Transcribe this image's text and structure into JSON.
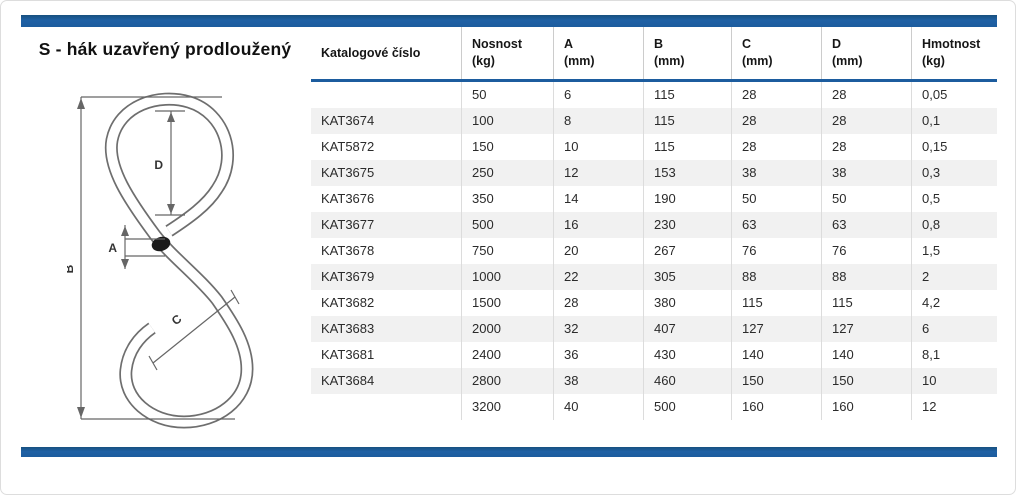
{
  "page": {
    "title": "S - hák uzavřený prodloužený"
  },
  "colors": {
    "accent_blue": "#1c5c9e",
    "row_alt": "#f1f1f1"
  },
  "diagram": {
    "description": "technical line drawing of closed elongated S-hook with dimension lines",
    "labels": {
      "a": "A",
      "b": "B",
      "c": "C",
      "d": "D"
    }
  },
  "table": {
    "columns": [
      {
        "id": "katalog",
        "label": "Katalogové číslo",
        "unit": ""
      },
      {
        "id": "nosnost",
        "label": "Nosnost",
        "unit": "(kg)"
      },
      {
        "id": "a",
        "label": "A",
        "unit": "(mm)"
      },
      {
        "id": "b",
        "label": "B",
        "unit": "(mm)"
      },
      {
        "id": "c",
        "label": "C",
        "unit": "(mm)"
      },
      {
        "id": "d",
        "label": "D",
        "unit": "(mm)"
      },
      {
        "id": "hmotnost",
        "label": "Hmotnost",
        "unit": "(kg)"
      }
    ],
    "rows": [
      [
        "",
        "50",
        "6",
        "115",
        "28",
        "28",
        "0,05"
      ],
      [
        "KAT3674",
        "100",
        "8",
        "115",
        "28",
        "28",
        "0,1"
      ],
      [
        "KAT5872",
        "150",
        "10",
        "115",
        "28",
        "28",
        "0,15"
      ],
      [
        "KAT3675",
        "250",
        "12",
        "153",
        "38",
        "38",
        "0,3"
      ],
      [
        "KAT3676",
        "350",
        "14",
        "190",
        "50",
        "50",
        "0,5"
      ],
      [
        "KAT3677",
        "500",
        "16",
        "230",
        "63",
        "63",
        "0,8"
      ],
      [
        "KAT3678",
        "750",
        "20",
        "267",
        "76",
        "76",
        "1,5"
      ],
      [
        "KAT3679",
        "1000",
        "22",
        "305",
        "88",
        "88",
        "2"
      ],
      [
        "KAT3682",
        "1500",
        "28",
        "380",
        "115",
        "115",
        "4,2"
      ],
      [
        "KAT3683",
        "2000",
        "32",
        "407",
        "127",
        "127",
        "6"
      ],
      [
        "KAT3681",
        "2400",
        "36",
        "430",
        "140",
        "140",
        "8,1"
      ],
      [
        "KAT3684",
        "2800",
        "38",
        "460",
        "150",
        "150",
        "10"
      ],
      [
        "",
        "3200",
        "40",
        "500",
        "160",
        "160",
        "12"
      ]
    ]
  }
}
